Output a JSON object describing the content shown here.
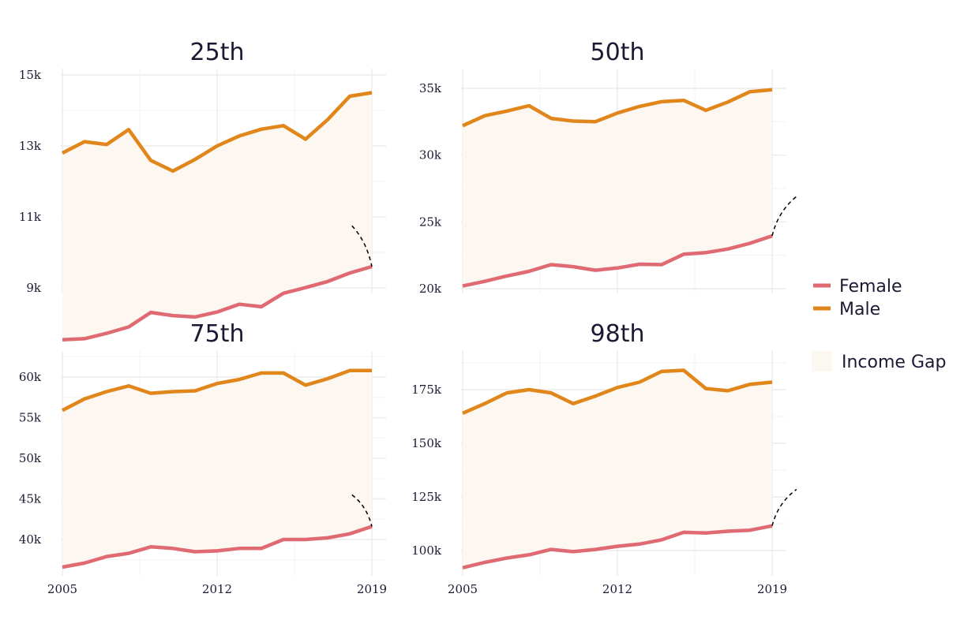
{
  "chart_data": {
    "type": "line",
    "shared_x": [
      2005,
      2006,
      2007,
      2008,
      2009,
      2010,
      2011,
      2012,
      2013,
      2014,
      2015,
      2016,
      2017,
      2018,
      2019
    ],
    "x_ticks": [
      2005,
      2012,
      2019
    ],
    "x_tick_labels": [
      "2005",
      "2012",
      "2019"
    ],
    "xlim": [
      2005,
      2019
    ],
    "grid": true,
    "legend": {
      "placement": "right",
      "entries": [
        {
          "label": "Female",
          "color": "#e06a72"
        },
        {
          "label": "Male",
          "color": "#e0861a"
        }
      ],
      "fill_entry": {
        "label": "Income Gap",
        "color": "#fdf7f2"
      }
    },
    "colors": {
      "female": "#e06a72",
      "male": "#e0861a",
      "gap_fill": "#fdf7f2",
      "grid": "#ebebeb",
      "annotation": "#000000"
    },
    "panels": [
      {
        "title": "25th",
        "ylim": [
          7500,
          15000
        ],
        "y_ticks": [
          9000,
          11000,
          13000,
          15000
        ],
        "y_tick_labels": [
          "9k",
          "11k",
          "13k",
          "15k"
        ],
        "series": [
          {
            "name": "Female",
            "values": [
              7540,
              7570,
              7720,
              7900,
              8310,
              8220,
              8180,
              8320,
              8540,
              8470,
              8850,
              9010,
              9180,
              9420,
              9600
            ]
          },
          {
            "name": "Male",
            "values": [
              12800,
              13120,
              13040,
              13460,
              12590,
              12290,
              12620,
              13000,
              13280,
              13470,
              13570,
              13190,
              13740,
              14400,
              14500
            ]
          }
        ],
        "annotation": {
          "type": "dashed-arc",
          "from": [
            2018.1,
            10750
          ],
          "to": [
            2019,
            9600
          ]
        }
      },
      {
        "title": "50th",
        "ylim": [
          20000,
          35500
        ],
        "y_ticks": [
          20000,
          25000,
          30000,
          35000
        ],
        "y_tick_labels": [
          "20k",
          "25k",
          "30k",
          "35k"
        ],
        "series": [
          {
            "name": "Female",
            "values": [
              20200,
              20550,
              20950,
              21300,
              21800,
              21650,
              21380,
              21550,
              21830,
              21800,
              22580,
              22700,
              22970,
              23400,
              23950
            ]
          },
          {
            "name": "Male",
            "values": [
              32200,
              32950,
              33300,
              33700,
              32750,
              32550,
              32500,
              33150,
              33650,
              34000,
              34100,
              33350,
              33980,
              34750,
              34900
            ]
          }
        ],
        "annotation": {
          "type": "dashed-arc",
          "from": [
            2019,
            23950
          ],
          "to": [
            2020.1,
            26900
          ]
        }
      },
      {
        "title": "75th",
        "ylim": [
          36500,
          62000
        ],
        "y_ticks": [
          40000,
          45000,
          50000,
          55000,
          60000
        ],
        "y_tick_labels": [
          "40k",
          "45k",
          "50k",
          "55k",
          "60k"
        ],
        "series": [
          {
            "name": "Female",
            "values": [
              36600,
              37100,
              37900,
              38300,
              39100,
              38900,
              38500,
              38600,
              38900,
              38900,
              40000,
              40000,
              40200,
              40700,
              41600
            ]
          },
          {
            "name": "Male",
            "values": [
              55900,
              57300,
              58200,
              58900,
              58000,
              58200,
              58300,
              59200,
              59700,
              60500,
              60500,
              59000,
              59800,
              60800,
              60800
            ]
          }
        ],
        "annotation": {
          "type": "dashed-arc",
          "from": [
            2018.1,
            45500
          ],
          "to": [
            2019,
            41600
          ]
        }
      },
      {
        "title": "98th",
        "ylim": [
          92000,
          187000
        ],
        "y_ticks": [
          100000,
          125000,
          150000,
          175000
        ],
        "y_tick_labels": [
          "100k",
          "125k",
          "150k",
          "175k"
        ],
        "series": [
          {
            "name": "Female",
            "values": [
              92000,
              94500,
              96500,
              98000,
              100500,
              99500,
              100500,
              102000,
              103000,
              105000,
              108500,
              108200,
              109000,
              109500,
              111500
            ]
          },
          {
            "name": "Male",
            "values": [
              164000,
              168500,
              173500,
              175000,
              173500,
              168500,
              172000,
              176000,
              178500,
              183500,
              184000,
              175500,
              174500,
              177500,
              178500
            ]
          }
        ],
        "annotation": {
          "type": "dashed-arc",
          "from": [
            2019,
            111500
          ],
          "to": [
            2020.1,
            128500
          ]
        }
      }
    ]
  }
}
